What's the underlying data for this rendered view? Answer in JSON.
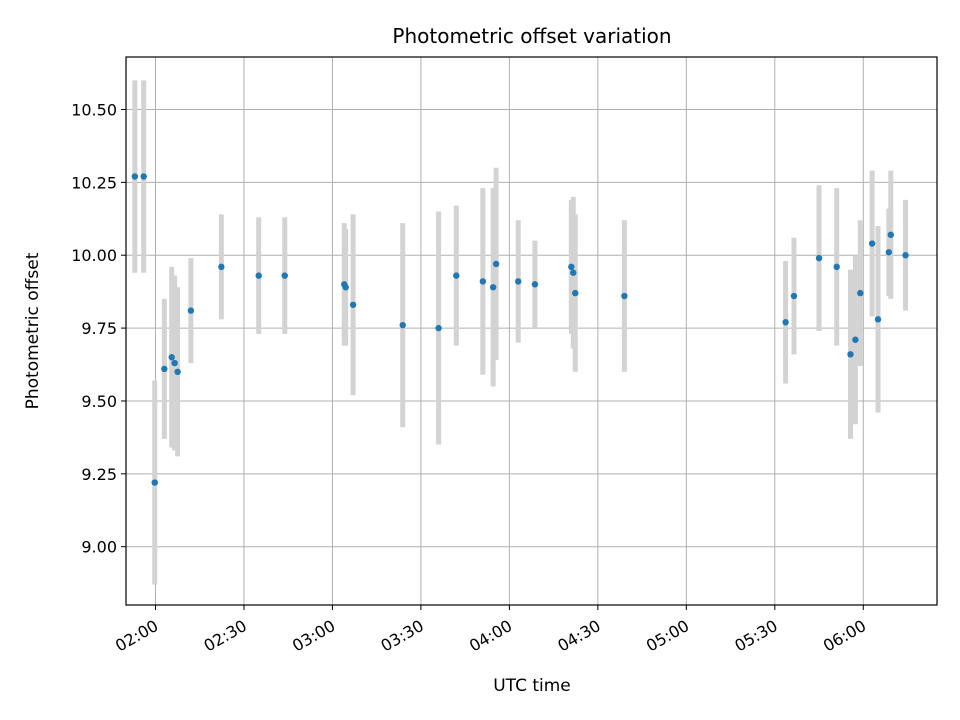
{
  "chart_data": {
    "type": "scatter",
    "title": "Photometric offset variation",
    "xlabel": "UTC time",
    "ylabel": "Photometric offset",
    "xlim": [
      "01:50",
      "06:25"
    ],
    "ylim": [
      8.8,
      10.68
    ],
    "x_ticks": [
      "02:00",
      "02:30",
      "03:00",
      "03:30",
      "04:00",
      "04:30",
      "05:00",
      "05:30",
      "06:00"
    ],
    "y_ticks": [
      "9.00",
      "9.25",
      "9.50",
      "9.75",
      "10.00",
      "10.25",
      "10.50"
    ],
    "grid": true,
    "colors": {
      "point": "#1f77b4",
      "errorbar": "#d3d3d3",
      "grid": "#b0b0b0"
    },
    "points": [
      {
        "t": "01:53:00",
        "y": 10.27,
        "err": 0.33
      },
      {
        "t": "01:56:00",
        "y": 10.27,
        "err": 0.33
      },
      {
        "t": "01:59:45",
        "y": 9.22,
        "err": 0.35
      },
      {
        "t": "02:03:00",
        "y": 9.61,
        "err": 0.24
      },
      {
        "t": "02:05:30",
        "y": 9.65,
        "err": 0.31
      },
      {
        "t": "02:06:30",
        "y": 9.63,
        "err": 0.3
      },
      {
        "t": "02:07:30",
        "y": 9.6,
        "err": 0.29
      },
      {
        "t": "02:12:00",
        "y": 9.81,
        "err": 0.18
      },
      {
        "t": "02:22:20",
        "y": 9.96,
        "err": 0.18
      },
      {
        "t": "02:35:00",
        "y": 9.93,
        "err": 0.2
      },
      {
        "t": "02:43:50",
        "y": 9.93,
        "err": 0.2
      },
      {
        "t": "03:04:00",
        "y": 9.9,
        "err": 0.21
      },
      {
        "t": "03:04:30",
        "y": 9.89,
        "err": 0.2
      },
      {
        "t": "03:07:00",
        "y": 9.83,
        "err": 0.31
      },
      {
        "t": "03:23:50",
        "y": 9.76,
        "err": 0.35
      },
      {
        "t": "03:36:00",
        "y": 9.75,
        "err": 0.4
      },
      {
        "t": "03:42:00",
        "y": 9.93,
        "err": 0.24
      },
      {
        "t": "03:51:00",
        "y": 9.91,
        "err": 0.32
      },
      {
        "t": "03:54:30",
        "y": 9.89,
        "err": 0.34
      },
      {
        "t": "03:55:30",
        "y": 9.97,
        "err": 0.33
      },
      {
        "t": "04:03:00",
        "y": 9.91,
        "err": 0.21
      },
      {
        "t": "04:08:40",
        "y": 9.9,
        "err": 0.15
      },
      {
        "t": "04:21:00",
        "y": 9.96,
        "err": 0.23
      },
      {
        "t": "04:21:40",
        "y": 9.94,
        "err": 0.26
      },
      {
        "t": "04:22:20",
        "y": 9.87,
        "err": 0.27
      },
      {
        "t": "04:39:00",
        "y": 9.86,
        "err": 0.26
      },
      {
        "t": "05:33:40",
        "y": 9.77,
        "err": 0.21
      },
      {
        "t": "05:36:30",
        "y": 9.86,
        "err": 0.2
      },
      {
        "t": "05:45:00",
        "y": 9.99,
        "err": 0.25
      },
      {
        "t": "05:51:00",
        "y": 9.96,
        "err": 0.27
      },
      {
        "t": "05:55:40",
        "y": 9.66,
        "err": 0.29
      },
      {
        "t": "05:57:20",
        "y": 9.71,
        "err": 0.29
      },
      {
        "t": "05:59:00",
        "y": 9.87,
        "err": 0.25
      },
      {
        "t": "06:03:00",
        "y": 10.04,
        "err": 0.25
      },
      {
        "t": "06:05:00",
        "y": 9.78,
        "err": 0.32
      },
      {
        "t": "06:08:40",
        "y": 10.01,
        "err": 0.15
      },
      {
        "t": "06:09:20",
        "y": 10.07,
        "err": 0.22
      },
      {
        "t": "06:14:20",
        "y": 10.0,
        "err": 0.19
      }
    ]
  }
}
